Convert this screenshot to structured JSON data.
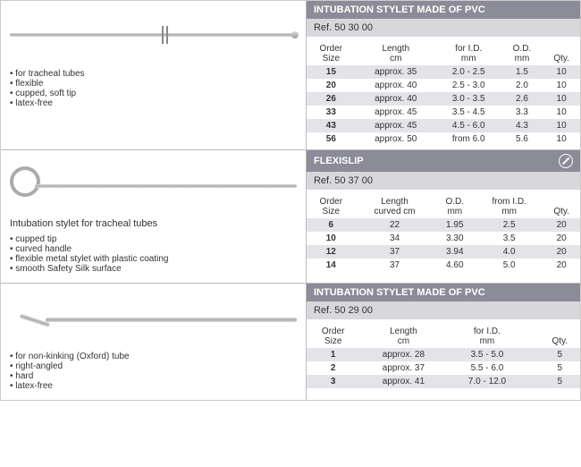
{
  "sections": [
    {
      "title": "INTUBATION STYLET MADE OF PVC",
      "ref": "Ref. 50 30 00",
      "show_nolatex_badge": false,
      "drawing": "straight",
      "left_heading": null,
      "bullets": [
        "for tracheal tubes",
        "flexible",
        "cupped, soft tip",
        "latex-free"
      ],
      "columns": [
        {
          "h1": "Order",
          "h2": "Size"
        },
        {
          "h1": "Length",
          "h2": "cm"
        },
        {
          "h1": "for I.D.",
          "h2": "mm"
        },
        {
          "h1": "O.D.",
          "h2": "mm"
        },
        {
          "h1": "Qty.",
          "h2": ""
        }
      ],
      "rows": [
        [
          "15",
          "approx. 35",
          "2.0 - 2.5",
          "1.5",
          "10"
        ],
        [
          "20",
          "approx. 40",
          "2.5 - 3.0",
          "2.0",
          "10"
        ],
        [
          "26",
          "approx. 40",
          "3.0 - 3.5",
          "2.6",
          "10"
        ],
        [
          "33",
          "approx. 45",
          "3.5 - 4.5",
          "3.3",
          "10"
        ],
        [
          "43",
          "approx. 45",
          "4.5 - 6.0",
          "4.3",
          "10"
        ],
        [
          "56",
          "approx. 50",
          "from 6.0",
          "5.6",
          "10"
        ]
      ],
      "alt_start_even": true
    },
    {
      "title": "FLEXISLIP",
      "ref": "Ref. 50 37 00",
      "show_nolatex_badge": true,
      "drawing": "loop",
      "left_heading": "Intubation stylet for tracheal tubes",
      "bullets": [
        "cupped tip",
        "curved handle",
        "flexible metal stylet with plastic coating",
        "smooth Safety Silk surface"
      ],
      "columns": [
        {
          "h1": "Order",
          "h2": "Size"
        },
        {
          "h1": "Length",
          "h2": "curved cm"
        },
        {
          "h1": "O.D.",
          "h2": "mm"
        },
        {
          "h1": "from I.D.",
          "h2": "mm"
        },
        {
          "h1": "Qty.",
          "h2": ""
        }
      ],
      "rows": [
        [
          "6",
          "22",
          "1.95",
          "2.5",
          "20"
        ],
        [
          "10",
          "34",
          "3.30",
          "3.5",
          "20"
        ],
        [
          "12",
          "37",
          "3.94",
          "4.0",
          "20"
        ],
        [
          "14",
          "37",
          "4.60",
          "5.0",
          "20"
        ]
      ],
      "alt_start_even": true
    },
    {
      "title": "INTUBATION STYLET MADE OF PVC",
      "ref": "Ref. 50 29 00",
      "show_nolatex_badge": false,
      "drawing": "angled",
      "left_heading": null,
      "bullets": [
        "for non-kinking (Oxford) tube",
        "right-angled",
        "hard",
        "latex-free"
      ],
      "columns": [
        {
          "h1": "Order",
          "h2": "Size"
        },
        {
          "h1": "Length",
          "h2": "cm"
        },
        {
          "h1": "for I.D.",
          "h2": "mm"
        },
        {
          "h1": "",
          "h2": ""
        },
        {
          "h1": "Qty.",
          "h2": ""
        }
      ],
      "rows": [
        [
          "1",
          "approx. 28",
          "3.5 - 5.0",
          "",
          "5"
        ],
        [
          "2",
          "approx. 37",
          "5.5 - 6.0",
          "",
          "5"
        ],
        [
          "3",
          "approx. 41",
          "7.0 - 12.0",
          "",
          "5"
        ]
      ],
      "alt_start_even": true
    }
  ],
  "colors": {
    "title_bg": "#8c8c98",
    "ref_bg": "#d8d8dc",
    "row_alt": "#e4e4e8"
  }
}
